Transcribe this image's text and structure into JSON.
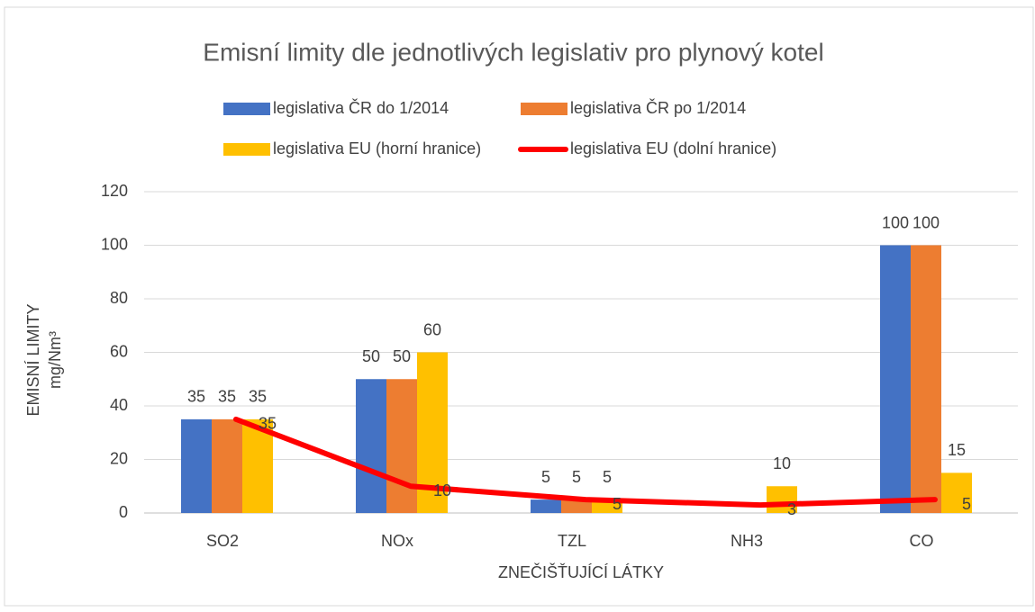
{
  "chart_data": {
    "type": "bar",
    "title": "Emisní limity dle jednotlivých legislativ pro plynový kotel",
    "x_label": "ZNEČIŠŤUJÍCÍ LÁTKY",
    "y_label": [
      "EMISNÍ LIMITY",
      "mg/Nm³"
    ],
    "categories": [
      "SO2",
      "NOx",
      "TZL",
      "NH3",
      "CO"
    ],
    "series": [
      {
        "name": "legislativa ČR do 1/2014",
        "color": "#4472c4",
        "values": [
          35,
          50,
          5,
          null,
          100
        ]
      },
      {
        "name": "legislativa ČR po 1/2014",
        "color": "#ed7d31",
        "values": [
          35,
          50,
          5,
          null,
          100
        ]
      },
      {
        "name": "legislativa EU (horní hranice)",
        "color": "#ffc000",
        "values": [
          35,
          60,
          5,
          10,
          15
        ]
      },
      {
        "name": "legislativa EU (dolní hranice)",
        "color": "#ff0000",
        "type": "line",
        "values": [
          35,
          10,
          5,
          3,
          5
        ]
      }
    ],
    "ylim": [
      0,
      120
    ],
    "yticks": [
      0,
      20,
      40,
      60,
      80,
      100,
      120
    ],
    "grid": true
  }
}
